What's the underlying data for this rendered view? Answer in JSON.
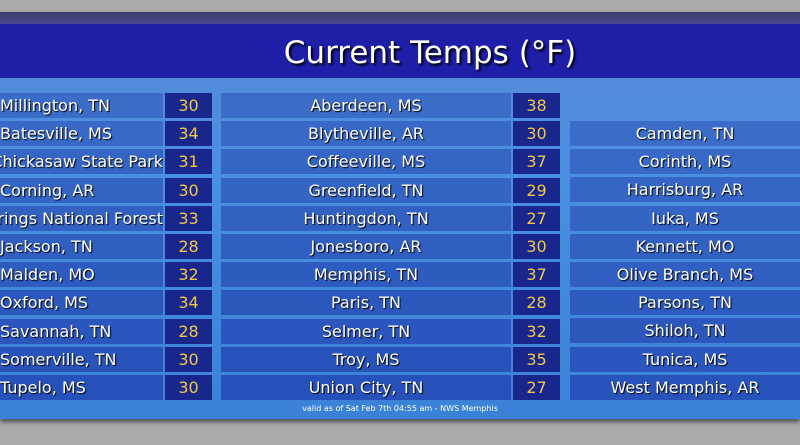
{
  "title": "Current Temps (°F)",
  "footer": "valid as of Sat Feb 7th 04:55 am - NWS Memphis",
  "colors": {
    "header": "#1e1ea8",
    "row": "#2f62c0",
    "temp_cell": "#19268c",
    "temp_text": "#f2c744"
  },
  "columns": [
    {
      "rows": [
        {
          "name": "Millington, TN",
          "temp": "30"
        },
        {
          "name": "Batesville, MS",
          "temp": "34"
        },
        {
          "name": "Chickasaw State Park",
          "temp": "31"
        },
        {
          "name": "Corning, AR",
          "temp": "30"
        },
        {
          "name": "Holly Springs National Forest",
          "temp": "33"
        },
        {
          "name": "Jackson, TN",
          "temp": "28"
        },
        {
          "name": "Malden, MO",
          "temp": "32"
        },
        {
          "name": "Oxford, MS",
          "temp": "34"
        },
        {
          "name": "Savannah, TN",
          "temp": "28"
        },
        {
          "name": "Somerville, TN",
          "temp": "30"
        },
        {
          "name": "Tupelo, MS",
          "temp": "30"
        }
      ]
    },
    {
      "rows": [
        {
          "name": "Aberdeen, MS",
          "temp": "38"
        },
        {
          "name": "Blytheville, AR",
          "temp": "30"
        },
        {
          "name": "Coffeeville, MS",
          "temp": "37"
        },
        {
          "name": "Greenfield, TN",
          "temp": "29"
        },
        {
          "name": "Huntingdon, TN",
          "temp": "27"
        },
        {
          "name": "Jonesboro, AR",
          "temp": "30"
        },
        {
          "name": "Memphis, TN",
          "temp": "37"
        },
        {
          "name": "Paris, TN",
          "temp": "28"
        },
        {
          "name": "Selmer, TN",
          "temp": "32"
        },
        {
          "name": "Troy, MS",
          "temp": "35"
        },
        {
          "name": "Union City, TN",
          "temp": "27"
        }
      ]
    },
    {
      "rows": [
        {
          "name": "Camden, TN"
        },
        {
          "name": "Corinth, MS"
        },
        {
          "name": "Harrisburg, AR"
        },
        {
          "name": "Iuka, MS"
        },
        {
          "name": "Kennett, MO"
        },
        {
          "name": "Olive Branch, MS"
        },
        {
          "name": "Parsons, TN"
        },
        {
          "name": "Shiloh, TN"
        },
        {
          "name": "Tunica, MS"
        },
        {
          "name": "West Memphis, AR"
        }
      ]
    }
  ]
}
